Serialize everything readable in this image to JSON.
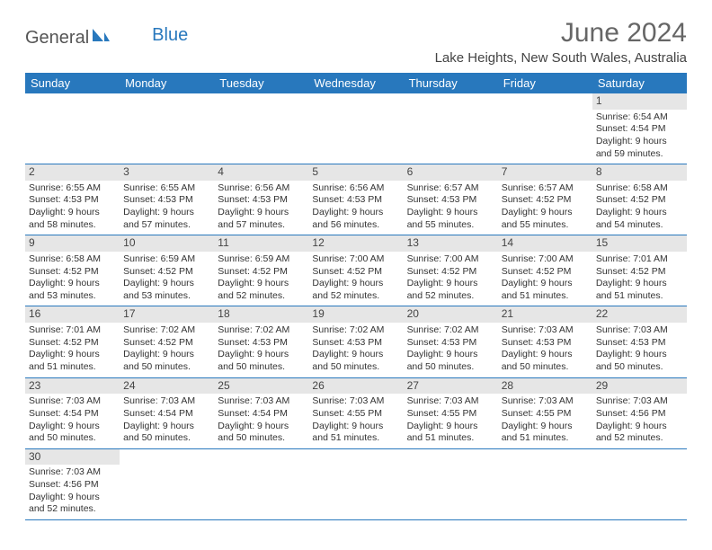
{
  "logo": {
    "general": "General",
    "blue": "Blue"
  },
  "title": {
    "month": "June 2024",
    "location": "Lake Heights, New South Wales, Australia"
  },
  "colors": {
    "header_bg": "#2878bd",
    "header_text": "#ffffff",
    "daynum_bg": "#e6e6e6",
    "border": "#2878bd",
    "text": "#333333",
    "title_text": "#666666"
  },
  "weekdays": [
    "Sunday",
    "Monday",
    "Tuesday",
    "Wednesday",
    "Thursday",
    "Friday",
    "Saturday"
  ],
  "weeks": [
    [
      null,
      null,
      null,
      null,
      null,
      null,
      {
        "n": "1",
        "sr": "Sunrise: 6:54 AM",
        "ss": "Sunset: 4:54 PM",
        "dl1": "Daylight: 9 hours",
        "dl2": "and 59 minutes."
      }
    ],
    [
      {
        "n": "2",
        "sr": "Sunrise: 6:55 AM",
        "ss": "Sunset: 4:53 PM",
        "dl1": "Daylight: 9 hours",
        "dl2": "and 58 minutes."
      },
      {
        "n": "3",
        "sr": "Sunrise: 6:55 AM",
        "ss": "Sunset: 4:53 PM",
        "dl1": "Daylight: 9 hours",
        "dl2": "and 57 minutes."
      },
      {
        "n": "4",
        "sr": "Sunrise: 6:56 AM",
        "ss": "Sunset: 4:53 PM",
        "dl1": "Daylight: 9 hours",
        "dl2": "and 57 minutes."
      },
      {
        "n": "5",
        "sr": "Sunrise: 6:56 AM",
        "ss": "Sunset: 4:53 PM",
        "dl1": "Daylight: 9 hours",
        "dl2": "and 56 minutes."
      },
      {
        "n": "6",
        "sr": "Sunrise: 6:57 AM",
        "ss": "Sunset: 4:53 PM",
        "dl1": "Daylight: 9 hours",
        "dl2": "and 55 minutes."
      },
      {
        "n": "7",
        "sr": "Sunrise: 6:57 AM",
        "ss": "Sunset: 4:52 PM",
        "dl1": "Daylight: 9 hours",
        "dl2": "and 55 minutes."
      },
      {
        "n": "8",
        "sr": "Sunrise: 6:58 AM",
        "ss": "Sunset: 4:52 PM",
        "dl1": "Daylight: 9 hours",
        "dl2": "and 54 minutes."
      }
    ],
    [
      {
        "n": "9",
        "sr": "Sunrise: 6:58 AM",
        "ss": "Sunset: 4:52 PM",
        "dl1": "Daylight: 9 hours",
        "dl2": "and 53 minutes."
      },
      {
        "n": "10",
        "sr": "Sunrise: 6:59 AM",
        "ss": "Sunset: 4:52 PM",
        "dl1": "Daylight: 9 hours",
        "dl2": "and 53 minutes."
      },
      {
        "n": "11",
        "sr": "Sunrise: 6:59 AM",
        "ss": "Sunset: 4:52 PM",
        "dl1": "Daylight: 9 hours",
        "dl2": "and 52 minutes."
      },
      {
        "n": "12",
        "sr": "Sunrise: 7:00 AM",
        "ss": "Sunset: 4:52 PM",
        "dl1": "Daylight: 9 hours",
        "dl2": "and 52 minutes."
      },
      {
        "n": "13",
        "sr": "Sunrise: 7:00 AM",
        "ss": "Sunset: 4:52 PM",
        "dl1": "Daylight: 9 hours",
        "dl2": "and 52 minutes."
      },
      {
        "n": "14",
        "sr": "Sunrise: 7:00 AM",
        "ss": "Sunset: 4:52 PM",
        "dl1": "Daylight: 9 hours",
        "dl2": "and 51 minutes."
      },
      {
        "n": "15",
        "sr": "Sunrise: 7:01 AM",
        "ss": "Sunset: 4:52 PM",
        "dl1": "Daylight: 9 hours",
        "dl2": "and 51 minutes."
      }
    ],
    [
      {
        "n": "16",
        "sr": "Sunrise: 7:01 AM",
        "ss": "Sunset: 4:52 PM",
        "dl1": "Daylight: 9 hours",
        "dl2": "and 51 minutes."
      },
      {
        "n": "17",
        "sr": "Sunrise: 7:02 AM",
        "ss": "Sunset: 4:52 PM",
        "dl1": "Daylight: 9 hours",
        "dl2": "and 50 minutes."
      },
      {
        "n": "18",
        "sr": "Sunrise: 7:02 AM",
        "ss": "Sunset: 4:53 PM",
        "dl1": "Daylight: 9 hours",
        "dl2": "and 50 minutes."
      },
      {
        "n": "19",
        "sr": "Sunrise: 7:02 AM",
        "ss": "Sunset: 4:53 PM",
        "dl1": "Daylight: 9 hours",
        "dl2": "and 50 minutes."
      },
      {
        "n": "20",
        "sr": "Sunrise: 7:02 AM",
        "ss": "Sunset: 4:53 PM",
        "dl1": "Daylight: 9 hours",
        "dl2": "and 50 minutes."
      },
      {
        "n": "21",
        "sr": "Sunrise: 7:03 AM",
        "ss": "Sunset: 4:53 PM",
        "dl1": "Daylight: 9 hours",
        "dl2": "and 50 minutes."
      },
      {
        "n": "22",
        "sr": "Sunrise: 7:03 AM",
        "ss": "Sunset: 4:53 PM",
        "dl1": "Daylight: 9 hours",
        "dl2": "and 50 minutes."
      }
    ],
    [
      {
        "n": "23",
        "sr": "Sunrise: 7:03 AM",
        "ss": "Sunset: 4:54 PM",
        "dl1": "Daylight: 9 hours",
        "dl2": "and 50 minutes."
      },
      {
        "n": "24",
        "sr": "Sunrise: 7:03 AM",
        "ss": "Sunset: 4:54 PM",
        "dl1": "Daylight: 9 hours",
        "dl2": "and 50 minutes."
      },
      {
        "n": "25",
        "sr": "Sunrise: 7:03 AM",
        "ss": "Sunset: 4:54 PM",
        "dl1": "Daylight: 9 hours",
        "dl2": "and 50 minutes."
      },
      {
        "n": "26",
        "sr": "Sunrise: 7:03 AM",
        "ss": "Sunset: 4:55 PM",
        "dl1": "Daylight: 9 hours",
        "dl2": "and 51 minutes."
      },
      {
        "n": "27",
        "sr": "Sunrise: 7:03 AM",
        "ss": "Sunset: 4:55 PM",
        "dl1": "Daylight: 9 hours",
        "dl2": "and 51 minutes."
      },
      {
        "n": "28",
        "sr": "Sunrise: 7:03 AM",
        "ss": "Sunset: 4:55 PM",
        "dl1": "Daylight: 9 hours",
        "dl2": "and 51 minutes."
      },
      {
        "n": "29",
        "sr": "Sunrise: 7:03 AM",
        "ss": "Sunset: 4:56 PM",
        "dl1": "Daylight: 9 hours",
        "dl2": "and 52 minutes."
      }
    ],
    [
      {
        "n": "30",
        "sr": "Sunrise: 7:03 AM",
        "ss": "Sunset: 4:56 PM",
        "dl1": "Daylight: 9 hours",
        "dl2": "and 52 minutes."
      },
      null,
      null,
      null,
      null,
      null,
      null
    ]
  ]
}
